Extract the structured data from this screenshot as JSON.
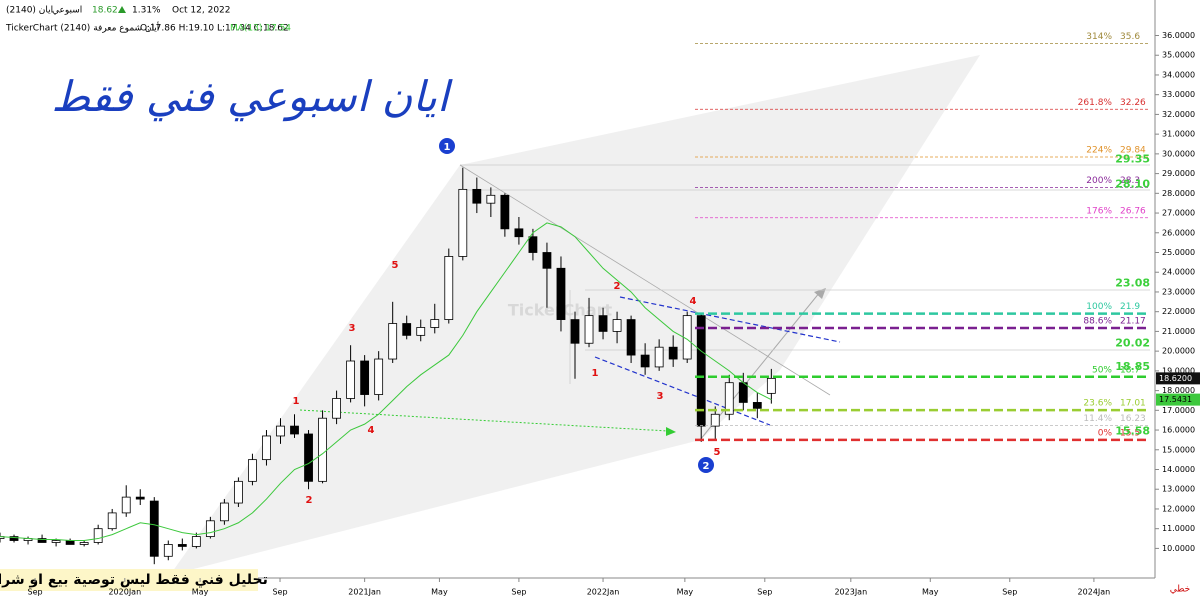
{
  "chart_data": {
    "type": "candlestick",
    "header": {
      "symbol": "ايان (2140)",
      "period": "اسبوعي",
      "price": "18.62",
      "change": "1.31%",
      "date": "Oct 12, 2022",
      "line2": "TickerChart (2140) أيان شموع معرفة",
      "ohlc": "O:17.86 H:19.10 L:17.34 C:18.62",
      "ma": "MA(13) 17.54"
    },
    "title": "ايان اسبوعي فني فقط",
    "disclaimer": "تحليل فني فقط  ليس توصية بيع او شراء",
    "watermark": "TickerChart",
    "corner_label": "خطي",
    "x": [
      0,
      3,
      6,
      9,
      12,
      15,
      18,
      21,
      24,
      27,
      30,
      33,
      36,
      39,
      42,
      45,
      48,
      51,
      54,
      57,
      60,
      63,
      66,
      69,
      72,
      75,
      78,
      81,
      84,
      87,
      90,
      93,
      96,
      99,
      102,
      105,
      108,
      111,
      114,
      117,
      120,
      123,
      126,
      129,
      132,
      135,
      138,
      141,
      144,
      147,
      150,
      153,
      156,
      159,
      162,
      165
    ],
    "open": [
      10.5,
      10.6,
      10.4,
      10.5,
      10.3,
      10.4,
      10.2,
      10.3,
      11.0,
      11.8,
      12.6,
      12.4,
      9.6,
      10.2,
      10.1,
      10.6,
      11.4,
      12.3,
      13.4,
      14.5,
      15.7,
      16.2,
      15.8,
      13.4,
      16.6,
      17.6,
      19.5,
      17.8,
      19.6,
      21.4,
      20.8,
      21.2,
      21.6,
      24.8,
      28.2,
      27.5,
      27.9,
      26.2,
      25.8,
      25.0,
      24.2,
      21.6,
      20.4,
      21.8,
      21.0,
      21.6,
      19.8,
      19.2,
      20.2,
      19.6,
      21.8,
      16.2,
      16.8,
      18.4,
      17.4,
      17.86
    ],
    "high": [
      10.8,
      10.7,
      10.6,
      10.7,
      10.5,
      10.5,
      10.4,
      11.2,
      12.0,
      13.2,
      13.0,
      12.6,
      10.4,
      10.5,
      10.8,
      11.6,
      12.5,
      13.6,
      14.8,
      16.0,
      16.6,
      16.8,
      16.0,
      17.0,
      18.0,
      20.3,
      19.8,
      20.0,
      22.5,
      21.8,
      21.6,
      22.4,
      25.2,
      29.3,
      28.8,
      28.3,
      28.0,
      26.8,
      26.2,
      25.5,
      24.8,
      22.0,
      22.7,
      22.2,
      22.0,
      21.8,
      20.4,
      20.6,
      20.8,
      22.0,
      21.9,
      17.2,
      18.8,
      18.9,
      17.9,
      19.1
    ],
    "low": [
      10.3,
      10.3,
      10.2,
      10.3,
      10.1,
      10.2,
      10.1,
      10.2,
      10.9,
      11.6,
      12.2,
      9.2,
      9.4,
      9.9,
      10.0,
      10.5,
      11.2,
      12.1,
      13.2,
      14.2,
      15.3,
      15.6,
      13.0,
      13.3,
      16.3,
      17.4,
      17.2,
      17.5,
      19.4,
      20.6,
      20.5,
      20.9,
      21.4,
      24.6,
      27.0,
      26.8,
      25.8,
      25.4,
      24.6,
      22.2,
      21.0,
      18.6,
      20.2,
      20.6,
      20.4,
      19.4,
      18.8,
      19.0,
      19.2,
      19.4,
      15.4,
      15.5,
      16.5,
      17.0,
      16.6,
      17.34
    ],
    "close": [
      10.6,
      10.4,
      10.5,
      10.3,
      10.4,
      10.2,
      10.3,
      11.0,
      11.8,
      12.6,
      12.5,
      9.6,
      10.2,
      10.1,
      10.6,
      11.4,
      12.3,
      13.4,
      14.5,
      15.7,
      16.2,
      15.8,
      13.4,
      16.6,
      17.6,
      19.5,
      17.8,
      19.6,
      21.4,
      20.8,
      21.2,
      21.6,
      24.8,
      28.2,
      27.5,
      27.9,
      26.2,
      25.8,
      25.0,
      24.2,
      21.6,
      20.4,
      21.8,
      21.0,
      21.6,
      19.8,
      19.2,
      20.2,
      19.6,
      21.8,
      16.2,
      16.8,
      18.4,
      17.4,
      17.1,
      18.62
    ],
    "ma": [
      10.6,
      10.55,
      10.5,
      10.45,
      10.45,
      10.4,
      10.4,
      10.5,
      10.7,
      11.0,
      11.3,
      11.2,
      11.0,
      10.8,
      10.7,
      10.8,
      11.0,
      11.3,
      11.8,
      12.5,
      13.3,
      14.0,
      14.3,
      14.8,
      15.4,
      16.0,
      16.3,
      16.8,
      17.5,
      18.2,
      18.8,
      19.3,
      19.8,
      20.8,
      22.0,
      23.0,
      24.0,
      25.0,
      26.0,
      26.5,
      26.3,
      25.8,
      25.0,
      24.2,
      23.6,
      23.0,
      22.2,
      21.6,
      21.0,
      20.6,
      20.0,
      19.5,
      19.0,
      18.4,
      17.9,
      17.54
    ],
    "ma_color": "#3cc83c",
    "up_color": "#ffffff",
    "down_color": "#000000",
    "xlim": [
      0,
      246
    ],
    "xticks": [
      {
        "value": 7.5,
        "label": "Sep"
      },
      {
        "value": 26.7,
        "label": "2020Jan"
      },
      {
        "value": 42.8,
        "label": "May"
      },
      {
        "value": 59.9,
        "label": "Sep"
      },
      {
        "value": 78,
        "label": "2021Jan"
      },
      {
        "value": 94,
        "label": "May"
      },
      {
        "value": 111,
        "label": "Sep"
      },
      {
        "value": 129,
        "label": "2022Jan"
      },
      {
        "value": 146.5,
        "label": "May"
      },
      {
        "value": 163.6,
        "label": "Sep"
      },
      {
        "value": 182,
        "label": "2023Jan"
      },
      {
        "value": 199,
        "label": "May"
      },
      {
        "value": 216,
        "label": "Sep"
      },
      {
        "value": 234,
        "label": "2024Jan"
      }
    ],
    "ylim": [
      8.5,
      37.8
    ],
    "yticks": [
      {
        "value": 10,
        "label": "10.0000"
      },
      {
        "value": 11,
        "label": "11.0000"
      },
      {
        "value": 12,
        "label": "12.0000"
      },
      {
        "value": 13,
        "label": "13.0000"
      },
      {
        "value": 14,
        "label": "14.0000"
      },
      {
        "value": 15,
        "label": "15.0000"
      },
      {
        "value": 16,
        "label": "16.0000"
      },
      {
        "value": 17,
        "label": "17.0000"
      },
      {
        "value": 18,
        "label": "18.0000"
      },
      {
        "value": 19,
        "label": "19.0000"
      },
      {
        "value": 20,
        "label": "20.0000"
      },
      {
        "value": 21,
        "label": "21.0000"
      },
      {
        "value": 22,
        "label": "22.0000"
      },
      {
        "value": 23,
        "label": "23.0000"
      },
      {
        "value": 24,
        "label": "24.0000"
      },
      {
        "value": 25,
        "label": "25.0000"
      },
      {
        "value": 26,
        "label": "26.0000"
      },
      {
        "value": 27,
        "label": "27.0000"
      },
      {
        "value": 28,
        "label": "28.0000"
      },
      {
        "value": 29,
        "label": "29.0000"
      },
      {
        "value": 30,
        "label": "30.0000"
      },
      {
        "value": 31,
        "label": "31.0000"
      },
      {
        "value": 32,
        "label": "32.0000"
      },
      {
        "value": 33,
        "label": "33.0000"
      },
      {
        "value": 34,
        "label": "34.0000"
      },
      {
        "value": 35,
        "label": "35.0000"
      },
      {
        "value": 36,
        "label": "36.0000"
      }
    ],
    "levels": [
      {
        "pct": "314%",
        "value": 35.6,
        "color": "#a08a3c",
        "style": "thin"
      },
      {
        "pct": "261.8%",
        "value": 32.26,
        "color": "#d83030",
        "style": "thin"
      },
      {
        "pct": "224%",
        "value": 29.84,
        "color": "#e0922a",
        "style": "thin"
      },
      {
        "pct": "200%",
        "value": 28.3,
        "color": "#8a2a9a",
        "style": "thin"
      },
      {
        "pct": "176%",
        "value": 26.76,
        "color": "#e040c8",
        "style": "thin"
      },
      {
        "pct": "100%",
        "value": 21.9,
        "color": "#2ec8a0",
        "style": "thick"
      },
      {
        "pct": "88.6%",
        "value": 21.17,
        "color": "#7a2090",
        "style": "thick"
      },
      {
        "pct": "50%",
        "value": 18.7,
        "color": "#2ecc2e",
        "style": "thick"
      },
      {
        "pct": "23.6%",
        "value": 17.01,
        "color": "#9acd32",
        "style": "thick"
      },
      {
        "pct": "11.4%",
        "value": 16.23,
        "color": "#bbbbbb",
        "style": "thin"
      },
      {
        "pct": "0%",
        "value": 15.5,
        "color": "#e03030",
        "style": "thick"
      }
    ],
    "price_labels": [
      29.35,
      {
        "value": 28.1,
        "label": "28.10"
      },
      23.08,
      20.02,
      18.85,
      15.58
    ],
    "price_label_color": "#3cd03c",
    "last": {
      "value": 18.62,
      "label": "18.6200"
    },
    "ma_last": 17.5431,
    "waves": [
      "1",
      "2",
      "3",
      "4",
      "5",
      "1",
      "2",
      "3",
      "4",
      "5"
    ],
    "circles": [
      "1",
      "2"
    ]
  }
}
